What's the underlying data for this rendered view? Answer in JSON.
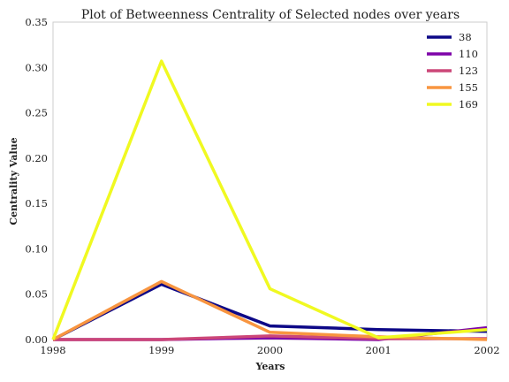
{
  "chart_data": {
    "type": "line",
    "title": "Plot of Betweenness Centrality of Selected nodes over years",
    "xlabel": "Years",
    "ylabel": "Centrality Value",
    "x": [
      1998,
      1999,
      2000,
      2001,
      2002
    ],
    "x_tick_labels": [
      "1998",
      "1999",
      "2000",
      "2001",
      "2002"
    ],
    "xlim": [
      1998,
      2002
    ],
    "ylim": [
      0,
      0.35
    ],
    "y_ticks": [
      0.0,
      0.05,
      0.1,
      0.15,
      0.2,
      0.25,
      0.3,
      0.35
    ],
    "y_tick_labels": [
      "0.00",
      "0.05",
      "0.10",
      "0.15",
      "0.20",
      "0.25",
      "0.30",
      "0.35"
    ],
    "grid": false,
    "legend_position": "top-right",
    "series": [
      {
        "name": "38",
        "color": "#0d0887",
        "values": [
          0.0,
          0.061,
          0.015,
          0.011,
          0.009
        ]
      },
      {
        "name": "110",
        "color": "#7e03a8",
        "values": [
          0.0,
          0.0,
          0.002,
          0.0,
          0.013
        ]
      },
      {
        "name": "123",
        "color": "#cc4778",
        "values": [
          0.0,
          0.0,
          0.004,
          0.001,
          0.001
        ]
      },
      {
        "name": "155",
        "color": "#f89540",
        "values": [
          0.0,
          0.064,
          0.008,
          0.003,
          0.0
        ]
      },
      {
        "name": "169",
        "color": "#f0f921",
        "values": [
          0.0,
          0.307,
          0.056,
          0.002,
          0.011
        ]
      }
    ]
  }
}
